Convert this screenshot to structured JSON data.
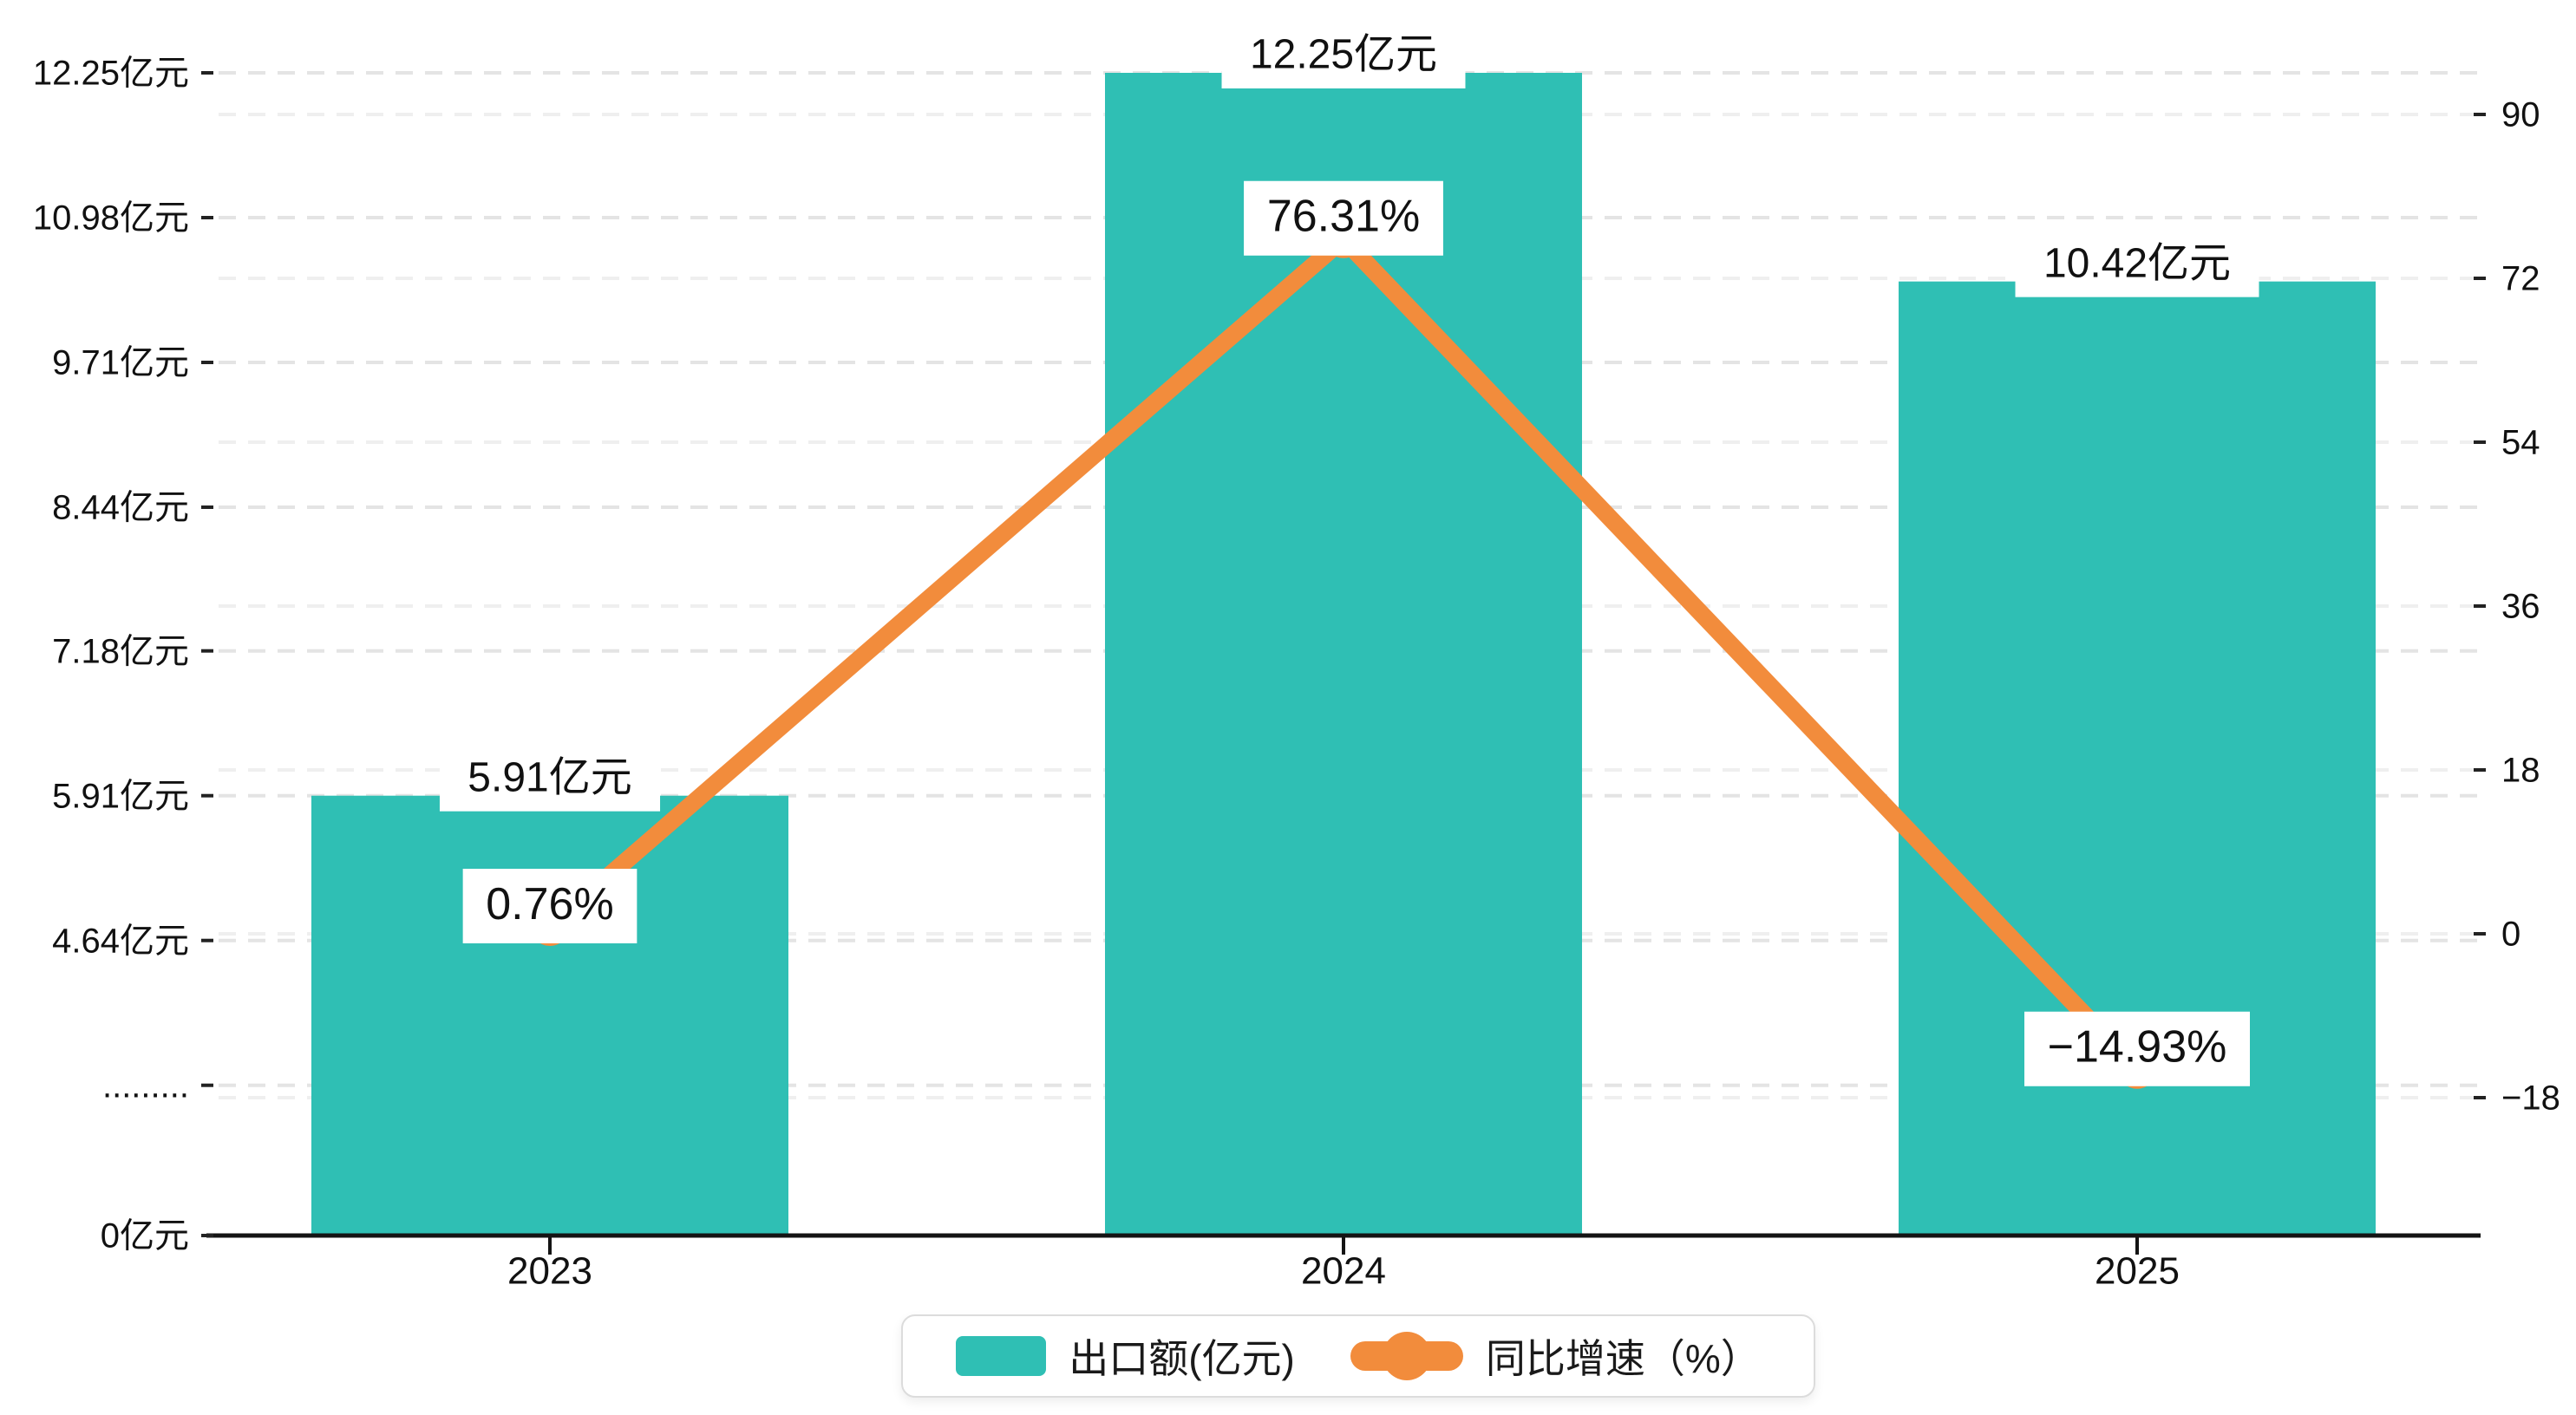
{
  "chart_data": {
    "type": "bar+line",
    "categories": [
      "2023",
      "2024",
      "2025"
    ],
    "series": [
      {
        "name": "出口额(亿元)",
        "type": "bar",
        "axis": "left",
        "color": "#2FBFB4",
        "values": [
          5.91,
          12.25,
          10.42
        ],
        "data_labels": [
          "5.91亿元",
          "12.25亿元",
          "10.42亿元"
        ]
      },
      {
        "name": "同比增速（%）",
        "type": "line",
        "axis": "right",
        "color": "#F28C3C",
        "values": [
          0.76,
          76.31,
          -14.93
        ],
        "data_labels": [
          "0.76%",
          "76.31%",
          "−14.93%"
        ]
      }
    ],
    "left_axis": {
      "unit": "亿元",
      "broken_axis": true,
      "ticks": [
        {
          "label": "12.25亿元",
          "value": 12.25
        },
        {
          "label": "10.98亿元",
          "value": 10.98
        },
        {
          "label": "9.71亿元",
          "value": 9.71
        },
        {
          "label": "8.44亿元",
          "value": 8.44
        },
        {
          "label": "7.18亿元",
          "value": 7.18
        },
        {
          "label": "5.91亿元",
          "value": 5.91
        },
        {
          "label": "4.64亿元",
          "value": 4.64
        },
        {
          "label": ".........",
          "value": 3.37
        },
        {
          "label": "0亿元",
          "value": 0
        }
      ]
    },
    "right_axis": {
      "ticks": [
        {
          "label": "90",
          "value": 90
        },
        {
          "label": "72",
          "value": 72
        },
        {
          "label": "54",
          "value": 54
        },
        {
          "label": "36",
          "value": 36
        },
        {
          "label": "18",
          "value": 18
        },
        {
          "label": "0",
          "value": 0
        },
        {
          "label": "−18",
          "value": -18
        }
      ]
    },
    "legend": {
      "items": [
        {
          "label": "出口额(亿元)",
          "marker": "bar-swatch",
          "color": "#2FBFB4"
        },
        {
          "label": "同比增速（%）",
          "marker": "line-dot",
          "color": "#F28C3C"
        }
      ]
    },
    "grid": {
      "on": true,
      "dashed": true,
      "color_left_set": "#E4E4E4",
      "color_right_set": "#EFEFEF"
    },
    "axis_line_color": "#141414",
    "background": "#FFFFFF"
  }
}
